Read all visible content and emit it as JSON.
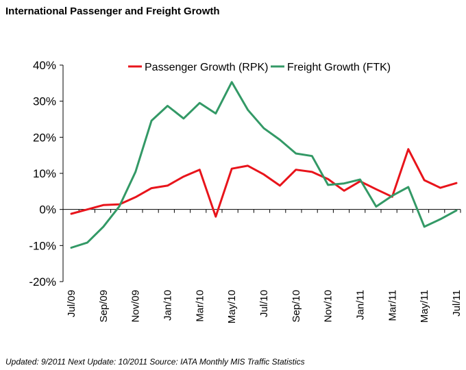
{
  "title": "International Passenger and Freight Growth",
  "footer": "Updated: 9/2011 Next Update: 10/2011 Source: IATA Monthly MIS Traffic Statistics",
  "colors": {
    "passenger": "#e8141b",
    "freight": "#339966",
    "axis": "#000000"
  },
  "chart_data": {
    "type": "line",
    "title": "International Passenger and Freight Growth",
    "xlabel": "",
    "ylabel": "",
    "ylim": [
      -20,
      40
    ],
    "yticks": [
      40,
      30,
      20,
      10,
      0,
      -10,
      -20
    ],
    "ytick_labels": [
      "40%",
      "30%",
      "20%",
      "10%",
      "0%",
      "-10%",
      "-20%"
    ],
    "grid": false,
    "legend_position": "top",
    "categories": [
      "Jul/09",
      "Aug/09",
      "Sep/09",
      "Oct/09",
      "Nov/09",
      "Dec/09",
      "Jan/10",
      "Feb/10",
      "Mar/10",
      "Apr/10",
      "May/10",
      "Jun/10",
      "Jul/10",
      "Aug/10",
      "Sep/10",
      "Oct/10",
      "Nov/10",
      "Dec/10",
      "Jan/11",
      "Feb/11",
      "Mar/11",
      "Apr/11",
      "May/11",
      "Jun/11",
      "Jul/11"
    ],
    "x_tick_labels": [
      "Jul/09",
      "",
      "Sep/09",
      "",
      "Nov/09",
      "",
      "Jan/10",
      "",
      "Mar/10",
      "",
      "May/10",
      "",
      "Jul/10",
      "",
      "Sep/10",
      "",
      "Nov/10",
      "",
      "Jan/11",
      "",
      "Mar/11",
      "",
      "May/11",
      "",
      "Jul/11"
    ],
    "series": [
      {
        "name": "Passenger Growth (RPK)",
        "color": "#e8141b",
        "values": [
          -1.2,
          0,
          1.2,
          1.4,
          3.4,
          5.9,
          6.6,
          9.1,
          11.0,
          -2.0,
          11.3,
          12.1,
          9.7,
          6.6,
          11.0,
          10.4,
          8.4,
          5.2,
          7.8,
          5.6,
          3.5,
          16.7,
          8.1,
          6.0,
          7.3
        ]
      },
      {
        "name": "Freight Growth (FTK)",
        "color": "#339966",
        "values": [
          -10.6,
          -9.2,
          -4.8,
          0.9,
          10.4,
          24.6,
          28.7,
          25.2,
          29.5,
          26.6,
          35.3,
          27.6,
          22.5,
          19.3,
          15.5,
          14.8,
          6.8,
          7.2,
          8.3,
          0.8,
          3.8,
          6.2,
          -4.8,
          -2.7,
          -0.3
        ]
      }
    ]
  }
}
